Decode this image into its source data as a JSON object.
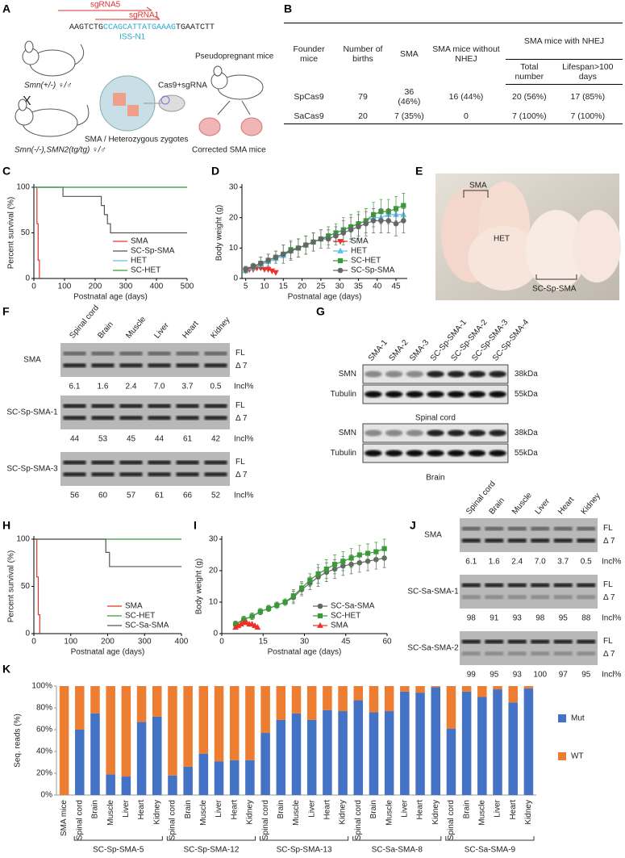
{
  "panel_labels": [
    "A",
    "B",
    "C",
    "D",
    "E",
    "F",
    "G",
    "H",
    "I",
    "J",
    "K"
  ],
  "panel_a": {
    "sgrna5": "sgRNA5",
    "sgrna1": "sgRNA1",
    "sequence": {
      "left": "AAGTCTG",
      "target": "CCAGCATTATGAAAG",
      "right": "TGAATCTT"
    },
    "iss": "ISS-N1",
    "parent1": "Smn(+/-) ♀/♂",
    "cross": "X",
    "parent2": "Smn(-/-),SMN2(tg/tg) ♀/♂",
    "injection": "Cas9+sgRNA",
    "zygotes": "SMA / Heterozygous zygotes",
    "recipient": "Pseudopregnant mice",
    "offspring": "Corrected SMA mice"
  },
  "table": {
    "group_header": "SMA mice with NHEJ",
    "headers": [
      "Founder mice",
      "Number of births",
      "SMA",
      "SMA mice without NHEJ",
      "Total number",
      "Lifespan>100 days"
    ],
    "rows": [
      [
        "SpCas9",
        "79",
        "36 (46%)",
        "16 (44%)",
        "20 (56%)",
        "17 (85%)"
      ],
      [
        "SaCas9",
        "20",
        "7 (35%)",
        "0",
        "7 (100%)",
        "7 (100%)"
      ]
    ]
  },
  "photo_labels": [
    "SMA",
    "HET",
    "SC-Sp-SMA"
  ],
  "gel_f": {
    "columns": [
      "Spinal cord",
      "Brain",
      "Muscle",
      "Liver",
      "Heart",
      "Kidney"
    ],
    "fl": "FL",
    "d7": "Δ 7",
    "incl": "Incl%",
    "rows": [
      {
        "name": "SMA",
        "values": [
          "6.1",
          "1.6",
          "2.4",
          "7.0",
          "3.7",
          "0.5"
        ]
      },
      {
        "name": "SC-Sp-SMA-1",
        "values": [
          "44",
          "53",
          "45",
          "44",
          "61",
          "42"
        ]
      },
      {
        "name": "SC-Sp-SMA-3",
        "values": [
          "56",
          "60",
          "57",
          "61",
          "66",
          "52"
        ]
      }
    ]
  },
  "western_g": {
    "lanes": [
      "SMA-1",
      "SMA-2",
      "SMA-3",
      "SC-Sp-SMA-1",
      "SC-Sp-SMA-2",
      "SC-Sp-SMA-3",
      "SC-Sp-SMA-4"
    ],
    "blocks": [
      {
        "caption": "Spinal cord",
        "rows": [
          {
            "name": "SMN",
            "size": "38kDa"
          },
          {
            "name": "Tubulin",
            "size": "55kDa"
          }
        ]
      },
      {
        "caption": "Brain",
        "rows": [
          {
            "name": "SMN",
            "size": "38kDa"
          },
          {
            "name": "Tubulin",
            "size": "55kDa"
          }
        ]
      }
    ]
  },
  "gel_j": {
    "columns": [
      "Spinal cord",
      "Brain",
      "Muscle",
      "Liver",
      "Heart",
      "Kidney"
    ],
    "fl": "FL",
    "d7": "Δ 7",
    "incl": "Incl%",
    "rows": [
      {
        "name": "SMA",
        "values": [
          "6.1",
          "1.6",
          "2.4",
          "7.0",
          "3.7",
          "0.5"
        ]
      },
      {
        "name": "SC-Sa-SMA-1",
        "values": [
          "98",
          "91",
          "93",
          "98",
          "95",
          "88"
        ]
      },
      {
        "name": "SC-Sa-SMA-2",
        "values": [
          "99",
          "95",
          "93",
          "100",
          "97",
          "95"
        ]
      }
    ]
  },
  "chart_data": [
    {
      "type": "line",
      "step": true,
      "x_label": "Postnatal age (days)",
      "y_label": "Percent survival (%)",
      "xlim": [
        0,
        500
      ],
      "xticks": [
        0,
        100,
        200,
        300,
        400,
        500
      ],
      "ylim": [
        0,
        100
      ],
      "yticks": [
        0,
        50,
        100
      ],
      "legend": "lower right",
      "series": [
        {
          "name": "SMA",
          "color": "#e8322a",
          "x": [
            0,
            10,
            14,
            18
          ],
          "values": [
            100,
            60,
            20,
            0
          ]
        },
        {
          "name": "SC-Sp-SMA",
          "color": "#555555",
          "x": [
            0,
            95,
            220,
            230,
            240,
            250,
            500
          ],
          "values": [
            100,
            90,
            80,
            70,
            60,
            50,
            50
          ]
        },
        {
          "name": "HET",
          "color": "#5bc0eb",
          "x": [
            0,
            500
          ],
          "values": [
            100,
            100
          ]
        },
        {
          "name": "SC-HET",
          "color": "#3a9a3a",
          "x": [
            0,
            500
          ],
          "values": [
            100,
            100
          ]
        }
      ]
    },
    {
      "type": "line",
      "x_label": "Postnatal age (days)",
      "y_label": "Body weight (g)",
      "xlim": [
        4,
        48
      ],
      "xticks": [
        5,
        10,
        15,
        20,
        25,
        30,
        35,
        40,
        45
      ],
      "ylim": [
        0,
        30
      ],
      "yticks": [
        0,
        10,
        20,
        30
      ],
      "legend": "lower right",
      "series": [
        {
          "name": "SMA",
          "color": "#e8322a",
          "marker": "triangle-down",
          "x": [
            5,
            6,
            7,
            8,
            9,
            10,
            11,
            12,
            13
          ],
          "values": [
            2.5,
            3,
            3,
            3.5,
            3.5,
            3,
            3,
            2.5,
            2
          ]
        },
        {
          "name": "HET",
          "color": "#5bc0eb",
          "marker": "triangle-up",
          "x": [
            5,
            7,
            9,
            11,
            13,
            15,
            17,
            19,
            21,
            23,
            25,
            27,
            29,
            31,
            33,
            35,
            37,
            39,
            41,
            43,
            45,
            47
          ],
          "values": [
            2.5,
            3.5,
            4.5,
            5.5,
            6.5,
            7.5,
            9,
            10,
            11,
            12,
            13,
            14,
            15,
            16,
            17,
            18,
            19,
            20,
            20,
            21,
            21,
            21
          ]
        },
        {
          "name": "SC-HET",
          "color": "#3a9a3a",
          "marker": "square",
          "x": [
            5,
            7,
            9,
            11,
            13,
            15,
            17,
            19,
            21,
            23,
            25,
            27,
            29,
            31,
            33,
            35,
            37,
            39,
            41,
            43,
            45,
            47
          ],
          "values": [
            3,
            4,
            5,
            6,
            7,
            8,
            9.5,
            10,
            11,
            12,
            13,
            14,
            15,
            16,
            17,
            18,
            19,
            21,
            22,
            22,
            23,
            24
          ],
          "errors": [
            1,
            1,
            2,
            2,
            2,
            3,
            3,
            3,
            3,
            3,
            3,
            3,
            3,
            4,
            4,
            4,
            4,
            4,
            4,
            4,
            4,
            4
          ]
        },
        {
          "name": "SC-Sp-SMA",
          "color": "#666666",
          "marker": "circle",
          "x": [
            5,
            7,
            9,
            11,
            13,
            15,
            17,
            19,
            21,
            23,
            25,
            27,
            29,
            31,
            33,
            35,
            37,
            39,
            41,
            43,
            45,
            47
          ],
          "values": [
            3,
            4,
            5,
            6,
            7,
            8,
            9,
            10,
            11,
            12,
            13,
            13,
            14,
            15,
            16,
            17,
            18,
            19,
            19,
            19,
            18,
            19
          ],
          "errors": [
            1,
            1,
            2,
            2,
            2,
            3,
            3,
            3,
            3,
            3,
            3,
            3,
            3,
            4,
            4,
            4,
            4,
            4,
            4,
            4,
            4,
            4
          ]
        }
      ]
    },
    {
      "type": "line",
      "step": true,
      "x_label": "Postnatal age (days)",
      "y_label": "Percent survival (%)",
      "xlim": [
        0,
        400
      ],
      "xticks": [
        0,
        100,
        200,
        300,
        400
      ],
      "ylim": [
        0,
        100
      ],
      "yticks": [
        0,
        50,
        100
      ],
      "legend": "lower right",
      "series": [
        {
          "name": "SMA",
          "color": "#e8322a",
          "x": [
            0,
            8,
            12,
            16
          ],
          "values": [
            100,
            60,
            20,
            0
          ]
        },
        {
          "name": "SC-HET",
          "color": "#3a9a3a",
          "x": [
            0,
            400
          ],
          "values": [
            100,
            100
          ]
        },
        {
          "name": "SC-Sa-SMA",
          "color": "#555555",
          "x": [
            0,
            195,
            205,
            400
          ],
          "values": [
            100,
            86,
            71,
            71
          ]
        }
      ]
    },
    {
      "type": "line",
      "x_label": "Postnatal age (days)",
      "y_label": "Body weight (g)",
      "xlim": [
        0,
        60
      ],
      "xticks": [
        0,
        15,
        30,
        45,
        60
      ],
      "ylim": [
        0,
        30
      ],
      "yticks": [
        0,
        10,
        20,
        30
      ],
      "legend": "lower right",
      "series": [
        {
          "name": "SC-Sa-SMA",
          "color": "#666666",
          "marker": "circle",
          "x": [
            5,
            8,
            11,
            14,
            17,
            20,
            23,
            26,
            29,
            32,
            35,
            38,
            41,
            44,
            47,
            50,
            53,
            56,
            59
          ],
          "values": [
            3,
            4.5,
            5.5,
            7,
            8,
            9,
            10,
            11.5,
            14,
            16,
            18,
            19.5,
            20.5,
            21.5,
            22,
            22.5,
            23,
            23.5,
            24
          ],
          "errors": [
            1,
            1,
            1,
            1,
            1,
            1,
            1,
            2,
            2,
            2,
            3,
            3,
            3,
            3,
            3,
            3,
            3,
            3,
            3
          ]
        },
        {
          "name": "SC-HET",
          "color": "#3a9a3a",
          "marker": "square",
          "x": [
            5,
            8,
            11,
            14,
            17,
            20,
            23,
            26,
            29,
            32,
            35,
            38,
            41,
            44,
            47,
            50,
            53,
            56,
            59
          ],
          "values": [
            3,
            4.5,
            5.5,
            7,
            8,
            9,
            10,
            12,
            14.5,
            17,
            19,
            20.5,
            22,
            23,
            24,
            25,
            25.5,
            26,
            27
          ],
          "errors": [
            1,
            1,
            1,
            1,
            1,
            1,
            1,
            2,
            2,
            2,
            3,
            3,
            3,
            3,
            3,
            3,
            3,
            3,
            3
          ]
        },
        {
          "name": "SMA",
          "color": "#e8322a",
          "marker": "triangle-up",
          "x": [
            5,
            6,
            7,
            8,
            9,
            10,
            11,
            12,
            13
          ],
          "values": [
            2,
            2.5,
            3,
            3.5,
            3.5,
            3,
            3,
            2.5,
            2
          ]
        }
      ]
    },
    {
      "type": "bar",
      "stacked": true,
      "y_label": "Seq. reads (%)",
      "legend": "right",
      "ylim": [
        0,
        100
      ],
      "yticks": [
        {
          "value": 0,
          "label": "0%"
        },
        {
          "value": 20,
          "label": "20%"
        },
        {
          "value": 40,
          "label": "40%"
        },
        {
          "value": 60,
          "label": "60%"
        },
        {
          "value": 80,
          "label": "80%"
        },
        {
          "value": 100,
          "label": "100%"
        }
      ],
      "groups": [
        {
          "name": null,
          "categories": [
            "SMA mice"
          ]
        },
        {
          "name": "SC-Sp-SMA-5",
          "categories": [
            "Spinal cord",
            "Brain",
            "Muscle",
            "Liver",
            "Heart",
            "Kidney"
          ]
        },
        {
          "name": "SC-Sp-SMA-12",
          "categories": [
            "Spinal cord",
            "Brain",
            "Muscle",
            "Liver",
            "Heart",
            "Kidney"
          ]
        },
        {
          "name": "SC-Sp-SMA-13",
          "categories": [
            "Spinal cord",
            "Brain",
            "Muscle",
            "Liver",
            "Heart",
            "Kidney"
          ]
        },
        {
          "name": "SC-Sa-SMA-8",
          "categories": [
            "Spinal cord",
            "Brain",
            "Muscle",
            "Liver",
            "Heart",
            "Kidney"
          ]
        },
        {
          "name": "SC-Sa-SMA-9",
          "categories": [
            "Spinal cord",
            "Brain",
            "Muscle",
            "Liver",
            "Heart",
            "Kidney"
          ]
        }
      ],
      "series": [
        {
          "name": "Mut",
          "color": "#4472c4",
          "values": [
            0,
            60,
            75,
            19,
            17,
            67,
            72,
            18,
            26,
            38,
            31,
            32,
            32,
            57,
            69,
            75,
            69,
            78,
            77,
            87,
            76,
            77,
            95,
            94,
            99,
            61,
            95,
            90,
            97,
            85,
            98
          ]
        },
        {
          "name": "WT",
          "color": "#ed7d31",
          "values": [
            100,
            40,
            25,
            81,
            83,
            33,
            28,
            82,
            74,
            62,
            69,
            68,
            68,
            43,
            31,
            25,
            31,
            22,
            23,
            13,
            24,
            23,
            5,
            6,
            1,
            39,
            5,
            10,
            3,
            15,
            2
          ]
        }
      ]
    }
  ]
}
